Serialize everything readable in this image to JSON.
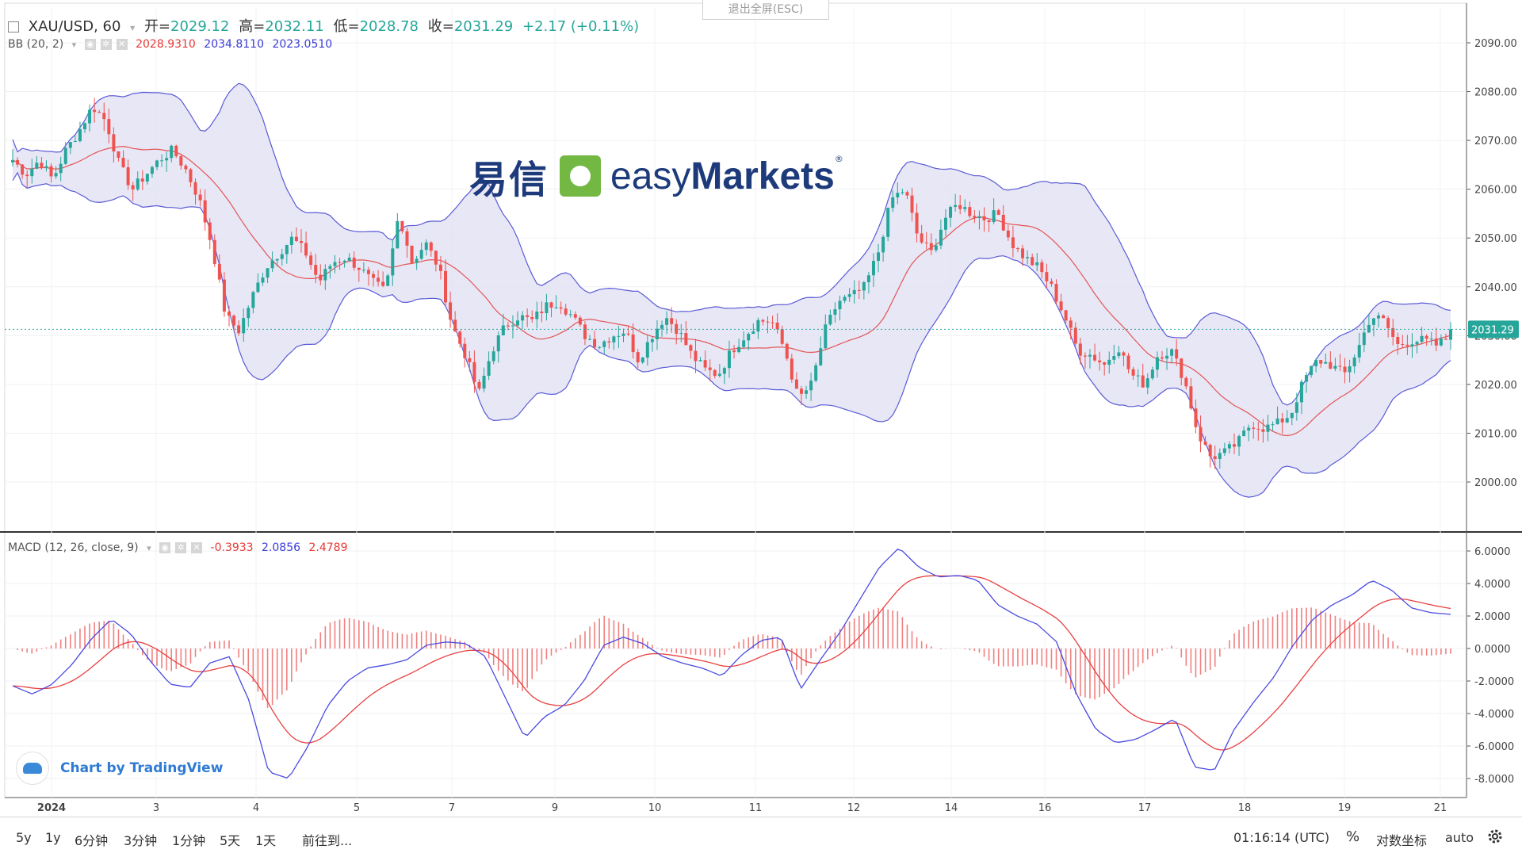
{
  "header": {
    "symbol": "XAU/USD, 60",
    "open_label": "开=",
    "open": "2029.12",
    "high_label": "高=",
    "high": "2032.11",
    "low_label": "低=",
    "low": "2028.78",
    "close_label": "收=",
    "close": "2031.29",
    "change": "+2.17 (+0.11%)"
  },
  "bb_legend": {
    "name": "BB (20, 2)",
    "basis": "2028.9310",
    "upper": "2034.8110",
    "lower": "2023.0510"
  },
  "macd_legend": {
    "name": "MACD (12, 26, close, 9)",
    "hist": "-0.3933",
    "macd": "2.0856",
    "signal": "2.4789"
  },
  "fullscreen_button": "退出全屏(ESC)",
  "logo": {
    "cn": "易信",
    "en_light": "easy",
    "en_bold": "Markets",
    "reg": "®"
  },
  "badge": "Chart by TradingView",
  "bottom_bar": {
    "ranges": [
      "5y",
      "1y",
      "6分钟",
      "3分钟",
      "1分钟",
      "5天",
      "1天"
    ],
    "goto": "前往到...",
    "time": "01:16:14 (UTC)",
    "percent": "%",
    "log": "对数坐标",
    "auto": "auto"
  },
  "colors": {
    "up": "#26a69a",
    "down": "#ef5350",
    "bb_band": "#5b5bd6",
    "bb_fill": "#e3e3f5",
    "bb_basis": "#e45555",
    "macd": "#4a4ae0",
    "signal": "#e84040",
    "hist": "#f08080"
  },
  "chart_data": {
    "type": "candlestick",
    "price_axis": {
      "min": 2000,
      "max": 2090,
      "ticks": [
        "2000.00",
        "2010.00",
        "2020.00",
        "2030.00",
        "2040.00",
        "2050.00",
        "2060.00",
        "2070.00",
        "2080.00",
        "2090.00"
      ],
      "last": "2031.29"
    },
    "macd_axis": {
      "min": -8,
      "max": 6,
      "ticks": [
        "-8.0000",
        "-6.0000",
        "-4.0000",
        "-2.0000",
        "0.0000",
        "2.0000",
        "4.0000",
        "6.0000"
      ]
    },
    "x_labels": [
      "2024",
      "3",
      "4",
      "5",
      "7",
      "9",
      "10",
      "11",
      "12",
      "14",
      "16",
      "17",
      "18",
      "19",
      "21"
    ],
    "close_path": [
      2066,
      2063,
      2066,
      2062,
      2068,
      2072,
      2077,
      2074,
      2065,
      2060,
      2063,
      2066,
      2068,
      2064,
      2058,
      2048,
      2034,
      2031,
      2038,
      2044,
      2047,
      2050,
      2047,
      2041,
      2045,
      2046,
      2044,
      2041,
      2039,
      2055,
      2045,
      2049,
      2044,
      2032,
      2026,
      2018,
      2027,
      2032,
      2034,
      2033,
      2036,
      2037,
      2034,
      2030,
      2028,
      2030,
      2031,
      2025,
      2030,
      2034,
      2031,
      2026,
      2023,
      2022,
      2027,
      2030,
      2033,
      2033,
      2027,
      2017,
      2020,
      2031,
      2037,
      2038,
      2040,
      2047,
      2058,
      2060,
      2050,
      2047,
      2054,
      2057,
      2055,
      2054,
      2055,
      2049,
      2046,
      2044,
      2040,
      2034,
      2027,
      2026,
      2024,
      2028,
      2022,
      2020,
      2026,
      2027,
      2021,
      2010,
      2005,
      2006,
      2008,
      2012,
      2011,
      2012,
      2014,
      2021,
      2025,
      2024,
      2022,
      2027,
      2034,
      2033,
      2028,
      2029,
      2029,
      2028,
      2030
    ],
    "macd_path": [
      -2.3,
      -2.8,
      -2.2,
      -1.0,
      0.6,
      1.8,
      0.9,
      -0.8,
      -2.2,
      -2.4,
      -0.9,
      -0.5,
      -3.2,
      -7.6,
      -8.0,
      -6.0,
      -3.5,
      -2.0,
      -1.2,
      -1.0,
      -0.7,
      0.2,
      0.4,
      0.3,
      -0.5,
      -3.0,
      -5.5,
      -4.2,
      -3.5,
      -2.0,
      0.2,
      0.7,
      0.3,
      -0.5,
      -0.9,
      -1.2,
      -1.7,
      -0.4,
      0.5,
      0.7,
      -2.5,
      -0.7,
      1.0,
      3.0,
      5.0,
      6.2,
      5.0,
      4.4,
      4.5,
      4.2,
      2.7,
      2.0,
      1.5,
      0.4,
      -2.8,
      -5.0,
      -5.8,
      -5.6,
      -5.0,
      -4.3,
      -7.3,
      -7.5,
      -5.0,
      -3.3,
      -1.8,
      0.2,
      1.8,
      2.7,
      3.3,
      4.2,
      3.6,
      2.5,
      2.2,
      2.1
    ]
  }
}
